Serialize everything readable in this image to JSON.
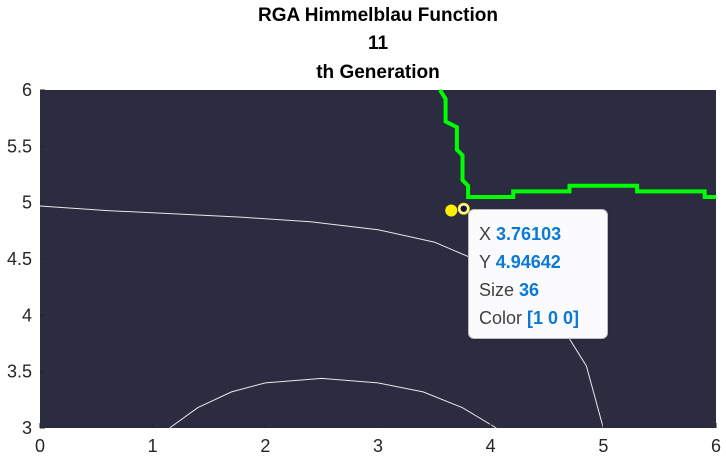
{
  "chart_data": {
    "type": "contour",
    "title_lines": [
      "RGA Himmelblau Function",
      "11",
      "th Generation"
    ],
    "xlim": [
      0,
      6
    ],
    "ylim": [
      3,
      6
    ],
    "xticks": [
      "0",
      "1",
      "2",
      "3",
      "4",
      "5",
      "6"
    ],
    "yticks": [
      "3",
      "3.5",
      "4",
      "4.5",
      "5",
      "5.5",
      "6"
    ],
    "grid": false,
    "background_color": "#2c2c40",
    "contour_color": "#e8e8ee",
    "feasible_boundary_color": "#00ff00",
    "contours": [
      {
        "x": [
          0.0,
          0.6,
          1.2,
          1.8,
          2.4,
          3.0,
          3.5,
          3.9,
          4.3,
          4.6,
          4.85,
          5.0
        ],
        "y": [
          4.97,
          4.93,
          4.9,
          4.87,
          4.83,
          4.76,
          4.65,
          4.48,
          4.25,
          3.95,
          3.55,
          3.0
        ]
      },
      {
        "x": [
          1.15,
          1.4,
          1.7,
          2.0,
          2.5,
          3.0,
          3.4,
          3.75,
          4.05
        ],
        "y": [
          3.0,
          3.18,
          3.32,
          3.4,
          3.44,
          3.4,
          3.32,
          3.18,
          3.0
        ]
      }
    ],
    "boundary": {
      "x": [
        3.55,
        3.6,
        3.6,
        3.7,
        3.7,
        3.75,
        3.75,
        3.8,
        3.8,
        4.2,
        4.2,
        4.7,
        4.7,
        5.3,
        5.3,
        5.9,
        5.9,
        6.0
      ],
      "y": [
        6.0,
        5.92,
        5.72,
        5.67,
        5.47,
        5.42,
        5.2,
        5.15,
        5.05,
        5.05,
        5.1,
        5.1,
        5.15,
        5.15,
        5.1,
        5.1,
        5.05,
        5.05
      ]
    },
    "points": [
      {
        "x": 3.65,
        "y": 4.93,
        "color": "#ffee00"
      },
      {
        "x": 3.76103,
        "y": 4.94642,
        "color": "#ffee00",
        "selected": true
      }
    ],
    "datatip": {
      "x_label": "X",
      "x_value": "3.76103",
      "y_label": "Y",
      "y_value": "4.94642",
      "size_label": "Size",
      "size_value": "36",
      "color_label": "Color",
      "color_value": "[1 0 0]"
    }
  }
}
